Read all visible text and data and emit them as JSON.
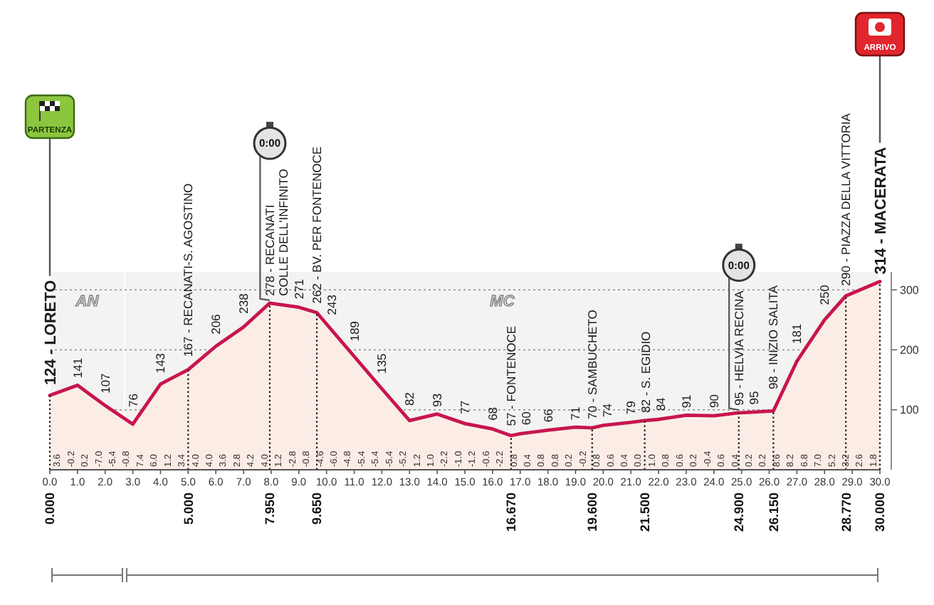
{
  "chart_data": {
    "type": "area",
    "x": [
      0,
      1,
      2,
      3,
      4,
      5,
      6,
      7,
      7.95,
      9,
      9.65,
      10,
      11,
      12,
      13,
      14,
      15,
      16,
      16.67,
      17,
      18,
      19,
      19.6,
      20,
      21,
      21.5,
      22,
      23,
      24,
      24.9,
      25,
      26.15,
      27,
      28,
      28.77,
      30
    ],
    "values": [
      124,
      141,
      107,
      76,
      143,
      167,
      206,
      238,
      278,
      271,
      262,
      243,
      189,
      135,
      82,
      93,
      77,
      68,
      57,
      60,
      66,
      71,
      70,
      74,
      79,
      82,
      84,
      91,
      90,
      95,
      95,
      98,
      181,
      250,
      290,
      314
    ],
    "value_labels": [
      "124 - LORETO",
      "141",
      "107",
      "76",
      "143",
      "167 - RECANATI-S. AGOSTINO",
      "206",
      "238",
      "278 - RECANATI\nCOLLE DELL'INFINITO",
      "271",
      "262 - BV. PER FONTENOCE",
      "243",
      "189",
      "135",
      "82",
      "93",
      "77",
      "68",
      "57 - FONTENOCE",
      "60",
      "66",
      "71",
      "70 - SAMBUCHETO",
      "74",
      "79",
      "82 - S. EGIDIO",
      "84",
      "91",
      "90",
      "95 - HELVIA RECINA",
      "95",
      "98 - INIZIO SALITA",
      "181",
      "250",
      "290 - PIAZZA DELLA VITTORIA",
      "314 - MACERATA"
    ],
    "color": "#c8154f",
    "xlim": [
      0,
      30
    ],
    "xticks": [
      {
        "value": 0,
        "label": "0.0"
      },
      {
        "value": 1,
        "label": "1.0"
      },
      {
        "value": 2,
        "label": "2.0"
      },
      {
        "value": 3,
        "label": "3.0"
      },
      {
        "value": 4,
        "label": "4.0"
      },
      {
        "value": 5,
        "label": "5.0"
      },
      {
        "value": 6,
        "label": "6.0"
      },
      {
        "value": 7,
        "label": "7.0"
      },
      {
        "value": 8,
        "label": "8.0"
      },
      {
        "value": 9,
        "label": "9.0"
      },
      {
        "value": 10,
        "label": "10.0"
      },
      {
        "value": 11,
        "label": "11.0"
      },
      {
        "value": 12,
        "label": "12.0"
      },
      {
        "value": 13,
        "label": "13.0"
      },
      {
        "value": 14,
        "label": "14.0"
      },
      {
        "value": 15,
        "label": "15.0"
      },
      {
        "value": 16,
        "label": "16.0"
      },
      {
        "value": 17,
        "label": "17.0"
      },
      {
        "value": 18,
        "label": "18.0"
      },
      {
        "value": 19,
        "label": "19.0"
      },
      {
        "value": 20,
        "label": "20.0"
      },
      {
        "value": 21,
        "label": "21.0"
      },
      {
        "value": 22,
        "label": "22.0"
      },
      {
        "value": 23,
        "label": "23.0"
      },
      {
        "value": 24,
        "label": "24.0"
      },
      {
        "value": 25,
        "label": "25.0"
      },
      {
        "value": 26,
        "label": "26.0"
      },
      {
        "value": 27,
        "label": "27.0"
      },
      {
        "value": 28,
        "label": "28.0"
      },
      {
        "value": 29,
        "label": "29.0"
      },
      {
        "value": 30,
        "label": "30.0"
      }
    ],
    "ylim": [
      0,
      330
    ],
    "yticks": [
      100,
      200,
      300
    ],
    "grid": "y",
    "ref_lines": [
      {
        "axis": "x",
        "value": 0,
        "label": "0.000",
        "line_style": "dotted"
      },
      {
        "axis": "x",
        "value": 5,
        "label": "5.000",
        "line_style": "dotted"
      },
      {
        "axis": "x",
        "value": 7.95,
        "label": "7.950",
        "line_style": "dotted"
      },
      {
        "axis": "x",
        "value": 9.65,
        "label": "9.650",
        "line_style": "dotted"
      },
      {
        "axis": "x",
        "value": 16.67,
        "label": "16.670",
        "line_style": "dotted"
      },
      {
        "axis": "x",
        "value": 19.6,
        "label": "19.600",
        "line_style": "dotted"
      },
      {
        "axis": "x",
        "value": 21.5,
        "label": "21.500",
        "line_style": "dotted"
      },
      {
        "axis": "x",
        "value": 24.9,
        "label": "24.900",
        "line_style": "dotted"
      },
      {
        "axis": "x",
        "value": 26.15,
        "label": "26.150",
        "line_style": "dotted"
      },
      {
        "axis": "x",
        "value": 28.77,
        "label": "28.770",
        "line_style": "dotted"
      },
      {
        "axis": "x",
        "value": 30,
        "label": "30.000",
        "line_style": "dotted"
      },
      {
        "axis": "x",
        "value": 0,
        "label": "PARTENZA",
        "line_style": "solid"
      },
      {
        "axis": "x",
        "value": 30,
        "label": "ARRIVO",
        "line_style": "solid"
      }
    ],
    "bands": [
      {
        "axis": "x",
        "from": 0,
        "to": 2.7,
        "label": "AN"
      },
      {
        "axis": "x",
        "from": 2.7,
        "to": 30,
        "label": "MC"
      }
    ],
    "annotations": [
      {
        "text": "0:00",
        "x": 7.95,
        "y": 278
      },
      {
        "text": "0:00",
        "x": 24.9,
        "y": 95
      },
      "3.6",
      "-0.2",
      "0.2",
      "-7.0",
      "-5.4",
      "-0.8",
      "7.4",
      "6.0",
      "1.2",
      "3.4",
      "4.0",
      "4.0",
      "3.6",
      "2.8",
      "4.2",
      "4.0",
      "1.2",
      "-2.8",
      "-0.8",
      "-4.6",
      "-6.0",
      "-4.8",
      "-5.4",
      "-5.4",
      "-5.4",
      "-5.2",
      "1.2",
      "1.0",
      "-2.2",
      "-1.0",
      "-1.2",
      "-0.6",
      "-2.2",
      "0.8",
      "0.4",
      "0.8",
      "0.8",
      "0.2",
      "-0.2",
      "0.8",
      "0.6",
      "0.4",
      "0.0",
      "1.0",
      "0.8",
      "0.6",
      "0.2",
      "-0.4",
      "0.6",
      "0.4",
      "0.2",
      "0.2",
      "8.6",
      "8.2",
      "6.8",
      "7.0",
      "5.2",
      "3.2",
      "2.6",
      "1.8"
    ]
  }
}
